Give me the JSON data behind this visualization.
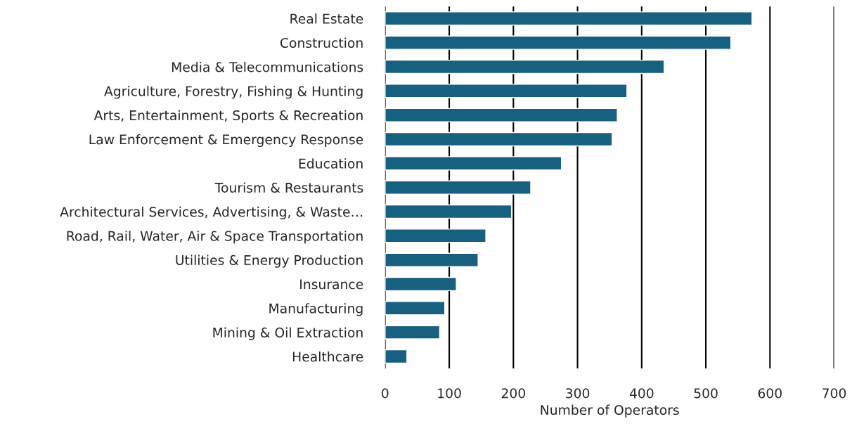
{
  "chart_data": {
    "type": "bar",
    "orientation": "horizontal",
    "xlabel": "Number of Operators",
    "categories": [
      "Real Estate",
      "Construction",
      "Media & Telecommunications",
      "Agriculture, Forestry, Fishing & Hunting",
      "Arts, Entertainment, Sports & Recreation",
      "Law Enforcement & Emergency Response",
      "Education",
      "Tourism & Restaurants",
      "Architectural Services, Advertising, & Waste…",
      "Road, Rail, Water, Air & Space Transportation",
      "Utilities & Energy Production",
      "Insurance",
      "Manufacturing",
      "Mining & Oil Extraction",
      "Healthcare"
    ],
    "values": [
      572,
      539,
      435,
      377,
      362,
      354,
      275,
      227,
      197,
      157,
      145,
      111,
      93,
      85,
      34
    ],
    "color": "#17607f",
    "xlim": [
      0,
      700
    ],
    "xticks": [
      0,
      100,
      200,
      300,
      400,
      500,
      600,
      700
    ],
    "grid": "x"
  }
}
